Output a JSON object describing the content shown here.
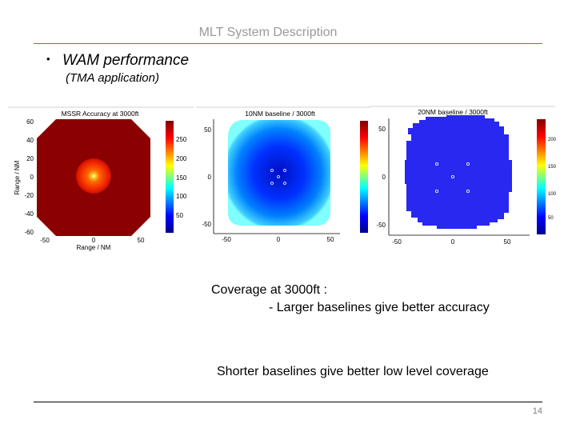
{
  "slide": {
    "header_title": "MLT System Description",
    "bullet": "WAM performance",
    "sub_note": "(TMA application)",
    "coverage_line1": "Coverage at 3000ft :",
    "coverage_line2": "- Larger baselines give better accuracy",
    "shorter_note": "Shorter baselines give better low level coverage",
    "page_number": "14"
  },
  "chart_data": [
    {
      "type": "heatmap",
      "title": "MSSR Accuracy at 3000ft",
      "xlabel": "Range / NM",
      "ylabel": "Range / NM",
      "x_ticks": [
        "-50",
        "0",
        "50"
      ],
      "y_ticks": [
        "60",
        "40",
        "20",
        "0",
        "-20",
        "-40",
        "-60"
      ],
      "colorbar_ticks": [
        "250",
        "200",
        "150",
        "100",
        "50"
      ],
      "palette": [
        "#00008f",
        "#0000ff",
        "#00ffff",
        "#ffff00",
        "#ff0000",
        "#800000"
      ]
    },
    {
      "type": "heatmap",
      "title": "10NM baseline / 3000ft",
      "xlabel": "",
      "ylabel": "",
      "x_ticks": [
        "-50",
        "0",
        "50"
      ],
      "y_ticks": [
        "50",
        "0",
        "-50"
      ],
      "colorbar_ticks": [],
      "palette": [
        "#00008f",
        "#0000ff",
        "#00ffff",
        "#ffff00",
        "#ff0000",
        "#800000"
      ]
    },
    {
      "type": "heatmap",
      "title": "20NM baseline / 3000ft",
      "xlabel": "",
      "ylabel": "",
      "x_ticks": [
        "-50",
        "0",
        "50"
      ],
      "y_ticks": [
        "50",
        "0",
        "-50"
      ],
      "colorbar_ticks": [
        "200",
        "150",
        "100",
        "50"
      ],
      "palette": [
        "#00008f",
        "#0000ff",
        "#00ffff",
        "#ffff00",
        "#ff0000",
        "#800000"
      ]
    }
  ]
}
